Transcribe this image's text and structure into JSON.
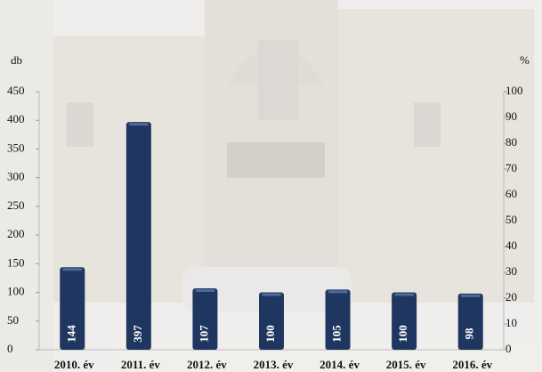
{
  "chart_data": {
    "type": "bar",
    "y_label": "db",
    "y2_label": "%",
    "categories": [
      "2010. év",
      "2011. év",
      "2012. év",
      "2013. év",
      "2014. év",
      "2015. év",
      "2016. év"
    ],
    "values": [
      144,
      397,
      107,
      100,
      105,
      100,
      98
    ],
    "color": "#1f3660",
    "ylim": [
      0,
      450
    ],
    "yticks": [
      0,
      50,
      100,
      150,
      200,
      250,
      300,
      350,
      400,
      450
    ],
    "y2lim": [
      0,
      100
    ],
    "y2ticks": [
      0,
      10,
      20,
      30,
      40,
      50,
      60,
      70,
      80,
      90,
      100
    ],
    "data_labels": true
  }
}
